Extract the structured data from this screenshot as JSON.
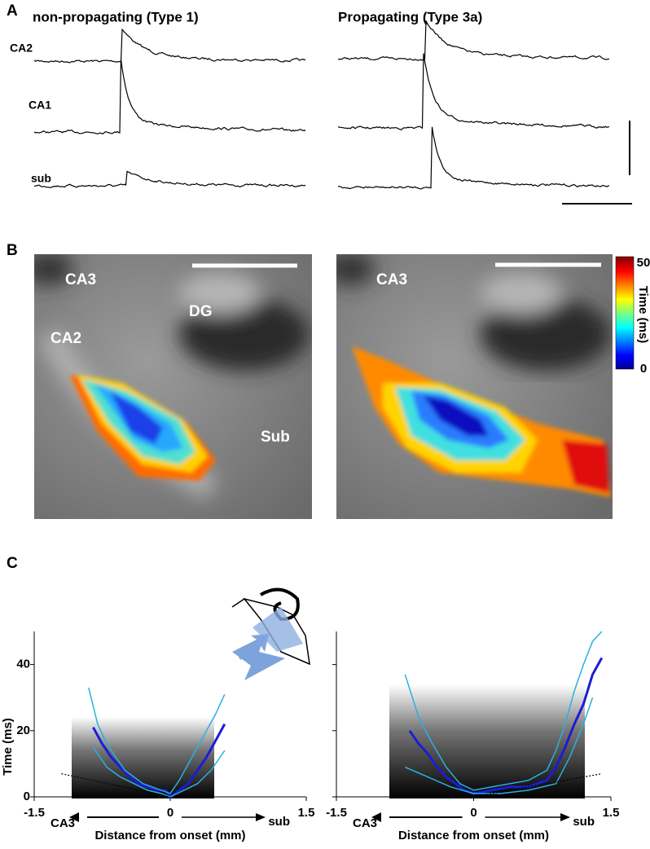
{
  "panels": {
    "a": {
      "label": "A",
      "titles": [
        "non-propagating (Type 1)",
        "Propagating (Type 3a)"
      ],
      "traces": [
        "CA2",
        "CA1",
        "sub"
      ]
    },
    "b": {
      "label": "B",
      "regions_left": [
        "CA3",
        "DG",
        "CA2",
        "Sub"
      ],
      "regions_right": [
        "CA3"
      ],
      "colorbar": {
        "label": "Time (ms)",
        "lim": [
          0,
          50
        ],
        "ticks": [
          50,
          0
        ]
      }
    },
    "c": {
      "label": "C"
    }
  },
  "chart_data": [
    {
      "type": "line",
      "ylabel": "Time (ms)",
      "xlabel": "Distance from onset (mm)",
      "annotations": [
        "CA3",
        "sub"
      ],
      "xlim": [
        -1.5,
        1.5
      ],
      "xticks": [
        -1.5,
        0,
        1.5
      ],
      "ylim": [
        0,
        50
      ],
      "yticks": [
        0,
        20,
        40
      ],
      "show_ytick_labels": true,
      "series": [
        {
          "color": "#1c1cd6",
          "width": 3,
          "style": "solid",
          "x": [
            -0.85,
            -0.75,
            -0.65,
            -0.55,
            -0.45,
            -0.35,
            -0.25,
            -0.15,
            -0.05,
            0,
            0.1,
            0.2,
            0.3,
            0.4,
            0.5,
            0.6
          ],
          "values": [
            21,
            16,
            12,
            9,
            6,
            4,
            3,
            2,
            2,
            0,
            2,
            4,
            8,
            12,
            17,
            22
          ]
        },
        {
          "color": "#29b0e0",
          "width": 1.5,
          "style": "solid",
          "x": [
            -0.9,
            -0.8,
            -0.7,
            -0.6,
            -0.5,
            -0.4,
            -0.3,
            -0.2,
            -0.1,
            0,
            0.1,
            0.2,
            0.3,
            0.4,
            0.5,
            0.6
          ],
          "values": [
            33,
            22,
            16,
            12,
            8,
            6,
            4,
            3,
            2,
            1,
            5,
            10,
            15,
            20,
            25,
            31
          ]
        },
        {
          "color": "#29b0e0",
          "width": 1.5,
          "style": "solid",
          "x": [
            -0.85,
            -0.7,
            -0.55,
            -0.4,
            -0.25,
            -0.1,
            0,
            0.15,
            0.3,
            0.45,
            0.6
          ],
          "values": [
            15,
            9,
            6,
            4,
            2,
            1,
            0,
            2,
            4,
            8,
            14
          ]
        },
        {
          "color": "#000000",
          "width": 1.2,
          "style": "dotted",
          "x": [
            -1.2,
            0
          ],
          "values": [
            7,
            0
          ]
        }
      ]
    },
    {
      "type": "line",
      "xlabel": "Distance from onset (mm)",
      "annotations": [
        "CA3",
        "sub"
      ],
      "xlim": [
        -1.5,
        1.5
      ],
      "xticks": [
        -1.5,
        0,
        1.5
      ],
      "ylim": [
        0,
        50
      ],
      "yticks": [
        0,
        20,
        40
      ],
      "show_ytick_labels": false,
      "series": [
        {
          "color": "#1c1cd6",
          "width": 3,
          "style": "solid",
          "x": [
            -0.7,
            -0.6,
            -0.5,
            -0.4,
            -0.3,
            -0.2,
            -0.1,
            0,
            0.2,
            0.4,
            0.6,
            0.8,
            0.9,
            1.0,
            1.1,
            1.2,
            1.3,
            1.4
          ],
          "values": [
            20,
            16,
            13,
            9,
            6,
            4,
            2,
            1,
            2,
            3,
            3,
            5,
            9,
            15,
            22,
            28,
            37,
            42
          ]
        },
        {
          "color": "#29b0e0",
          "width": 1.5,
          "style": "solid",
          "x": [
            -0.75,
            -0.6,
            -0.45,
            -0.3,
            -0.15,
            0,
            0.2,
            0.4,
            0.6,
            0.8,
            0.9,
            1.0,
            1.1,
            1.2,
            1.3,
            1.4
          ],
          "values": [
            37,
            24,
            16,
            9,
            4,
            2,
            3,
            4,
            5,
            8,
            14,
            22,
            32,
            40,
            47,
            50
          ]
        },
        {
          "color": "#29b0e0",
          "width": 1.5,
          "style": "solid",
          "x": [
            -0.75,
            -0.5,
            -0.25,
            0,
            0.3,
            0.6,
            0.9,
            1.05,
            1.2,
            1.3
          ],
          "values": [
            9,
            6,
            3,
            1,
            1,
            2,
            4,
            12,
            22,
            30
          ]
        },
        {
          "color": "#000000",
          "width": 1.2,
          "style": "dotted",
          "x": [
            0,
            1.4
          ],
          "values": [
            0,
            7
          ]
        }
      ]
    }
  ]
}
